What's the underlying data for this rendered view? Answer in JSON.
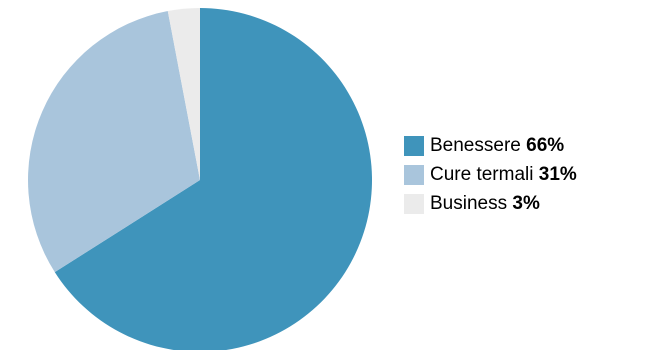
{
  "chart_data": {
    "type": "pie",
    "slices": [
      {
        "label": "Benessere",
        "value": 66,
        "value_label": "66%",
        "color": "#3f94bb"
      },
      {
        "label": "Cure termali",
        "value": 31,
        "value_label": "31%",
        "color": "#a9c5dc"
      },
      {
        "label": "Business",
        "value": 3,
        "value_label": "3%",
        "color": "#ebebeb"
      }
    ],
    "legend_position": "right"
  }
}
